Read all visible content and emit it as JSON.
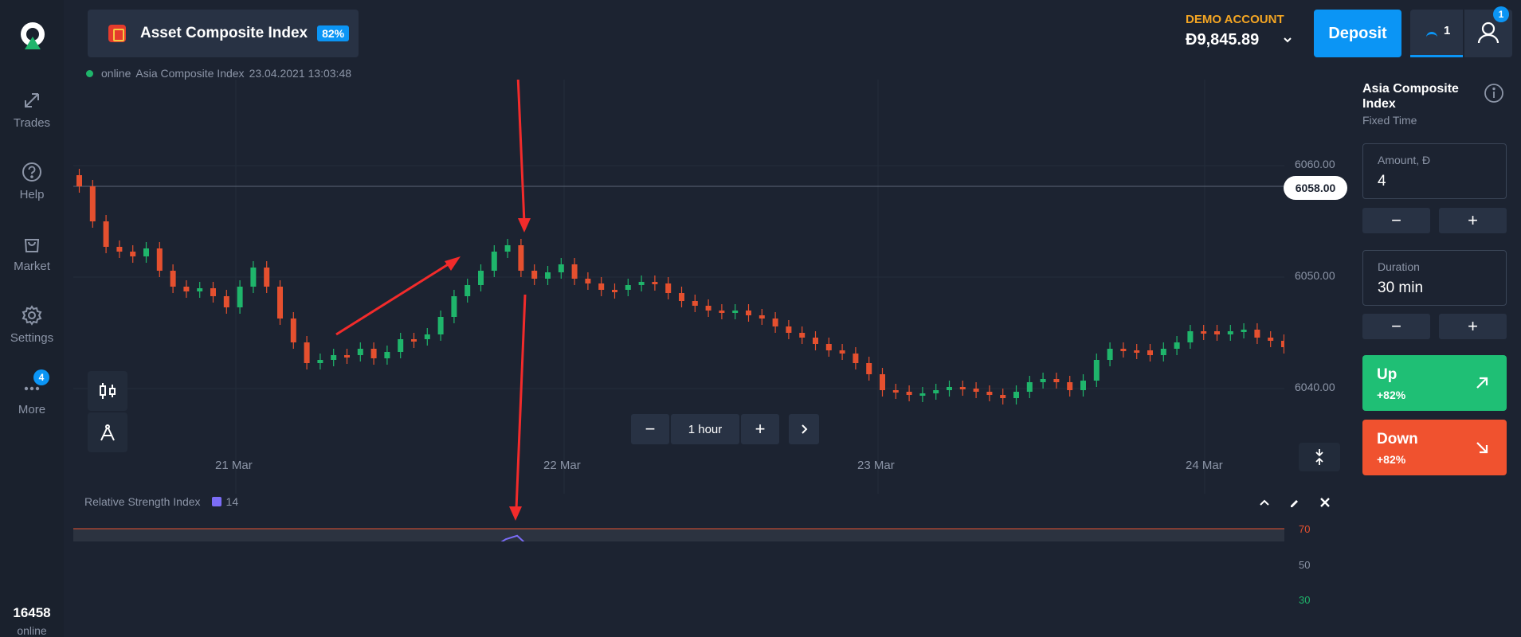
{
  "sidebar": {
    "items": [
      {
        "label": "Trades",
        "icon": "trades-arrows-icon"
      },
      {
        "label": "Help",
        "icon": "help-icon"
      },
      {
        "label": "Market",
        "icon": "shopping-bag-icon"
      },
      {
        "label": "Settings",
        "icon": "gear-icon"
      },
      {
        "label": "More",
        "icon": "more-dots-icon",
        "badge": "4"
      }
    ],
    "online_count": "16458",
    "online_label": "online"
  },
  "asset_tab": {
    "name": "Asset Composite Index",
    "payout": "82%"
  },
  "status": {
    "online": "online",
    "asset": "Asia Composite Index",
    "datetime": "23.04.2021 13:03:48"
  },
  "account": {
    "type": "DEMO ACCOUNT",
    "balance": "Đ9,845.89"
  },
  "header": {
    "deposit_label": "Deposit",
    "trades_count": "1",
    "profile_badge": "1"
  },
  "chart": {
    "current_price": "6058.00",
    "price_labels": [
      "6060.00",
      "6050.00",
      "6040.00"
    ],
    "date_labels": [
      "21 Mar",
      "22 Mar",
      "23 Mar",
      "24 Mar"
    ],
    "timeframe": "1 hour",
    "up_color": "#1fb56b",
    "down_color": "#e5502f"
  },
  "rsi": {
    "title": "Relative Strength Index",
    "period": "14",
    "levels": [
      "70",
      "50",
      "30"
    ],
    "line_color": "#7b6cf6"
  },
  "panel": {
    "asset_name": "Asia Composite Index",
    "mode": "Fixed Time",
    "amount_label": "Amount, Đ",
    "amount_value": "4",
    "duration_label": "Duration",
    "duration_value": "30 min",
    "up_label": "Up",
    "up_payout": "+82%",
    "down_label": "Down",
    "down_payout": "+82%",
    "up_color": "#1fbf75",
    "down_color": "#f0522f"
  }
}
